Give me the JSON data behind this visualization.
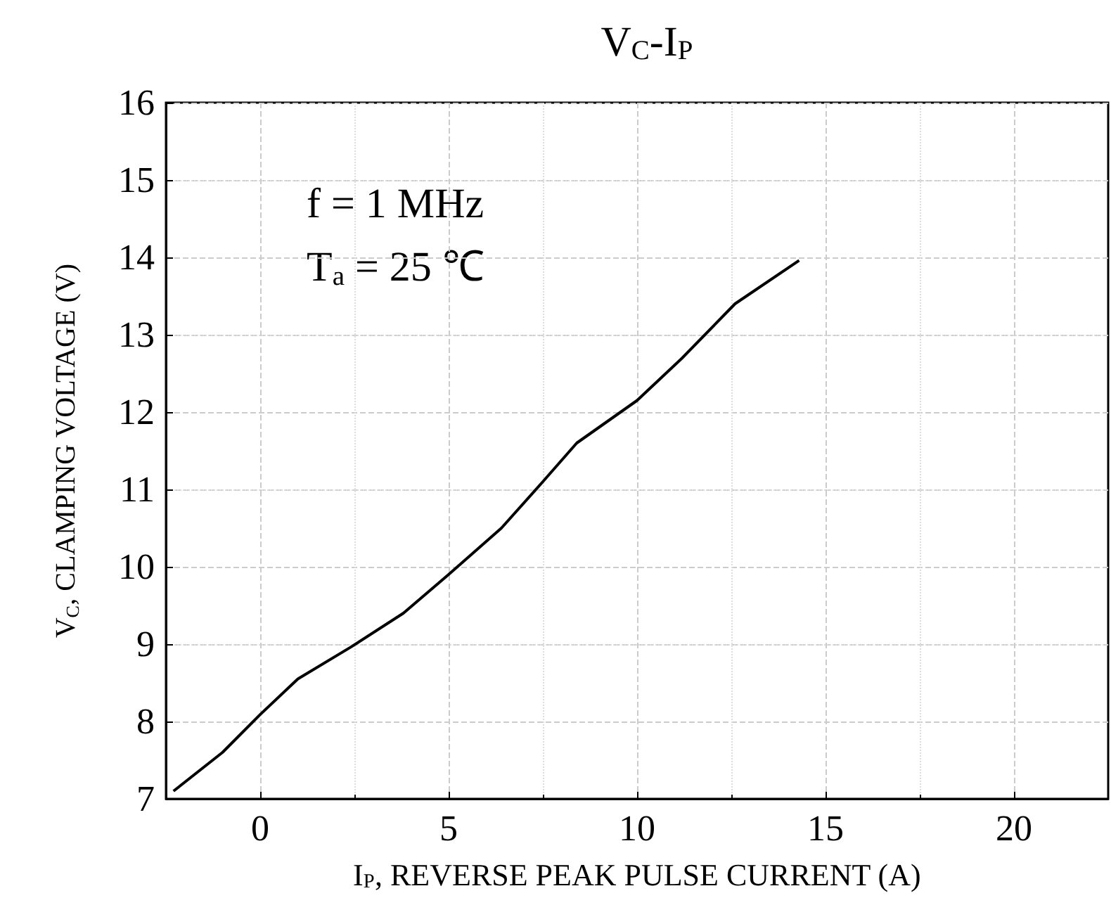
{
  "chart_data": {
    "type": "line",
    "title": "V$_{C}$-I$_{P}$",
    "xlabel": "I$_{P}$, REVERSE PEAK PULSE CURRENT (A)",
    "ylabel": "V$_{C}$, CLAMPING VOLTAGE (V)",
    "annotations": [
      "f = 1 MHz",
      "T$_{a}$ = 25 ℃"
    ],
    "series": [
      {
        "color": "#000000",
        "x": [
          -2.3,
          -1,
          0,
          1,
          2.4,
          3.8,
          5,
          6.4,
          7.5,
          8.4,
          10,
          11.2,
          12.6,
          14.3
        ],
        "values": [
          7.1,
          7.6,
          8.09,
          8.55,
          8.96,
          9.4,
          9.9,
          10.5,
          11.1,
          11.6,
          12.15,
          12.7,
          13.4,
          13.96
        ]
      }
    ],
    "xlim": [
      -2.5,
      22.5
    ],
    "xticks": [
      0,
      5,
      10,
      15,
      20
    ],
    "ylim": [
      7,
      16
    ],
    "yticks": [
      7,
      8,
      9,
      10,
      11,
      12,
      13,
      14,
      15,
      16
    ],
    "grid": true,
    "marker": "none",
    "line_style": "solid"
  }
}
